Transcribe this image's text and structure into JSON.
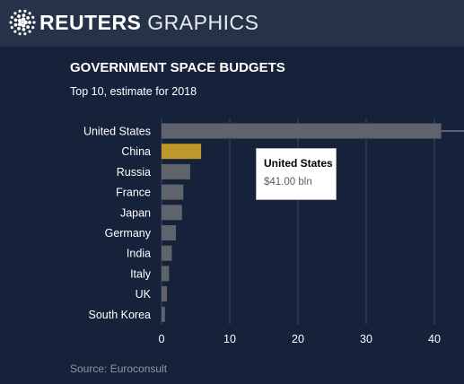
{
  "header": {
    "brand_bold": "REUTERS",
    "brand_light": "GRAPHICS",
    "logo_icon": "reuters-dot-ring-logo"
  },
  "colors": {
    "background": "#16213a",
    "header": "#253247",
    "bar": "#5f636b",
    "highlight": "#c0972b",
    "text": "#ffffff",
    "source": "#8d96a6"
  },
  "tooltip": {
    "name": "United States",
    "value": "$41.00 bln"
  },
  "source": "Source: Euroconsult",
  "chart_data": {
    "type": "bar",
    "orientation": "horizontal",
    "title": "GOVERNMENT SPACE BUDGETS",
    "subtitle": "Top 10, estimate for 2018",
    "categories": [
      "United States",
      "China",
      "Russia",
      "France",
      "Japan",
      "Germany",
      "India",
      "Italy",
      "UK",
      "South Korea"
    ],
    "values": [
      41.0,
      5.8,
      4.2,
      3.2,
      3.0,
      2.1,
      1.5,
      1.1,
      0.8,
      0.5
    ],
    "highlight": "China",
    "xlim": [
      0,
      44
    ],
    "ticks": [
      0,
      10,
      20,
      30,
      40
    ],
    "grid": true
  }
}
